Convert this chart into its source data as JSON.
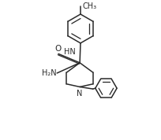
{
  "bg_color": "#ffffff",
  "line_color": "#2a2a2a",
  "line_width": 1.1,
  "font_size": 7.0,
  "figsize": [
    2.04,
    1.78
  ],
  "dpi": 100,
  "ch3_label": "CH₃",
  "nh_label": "HN",
  "o_label": "O",
  "h2n_label": "H₂N",
  "n_label": "N"
}
